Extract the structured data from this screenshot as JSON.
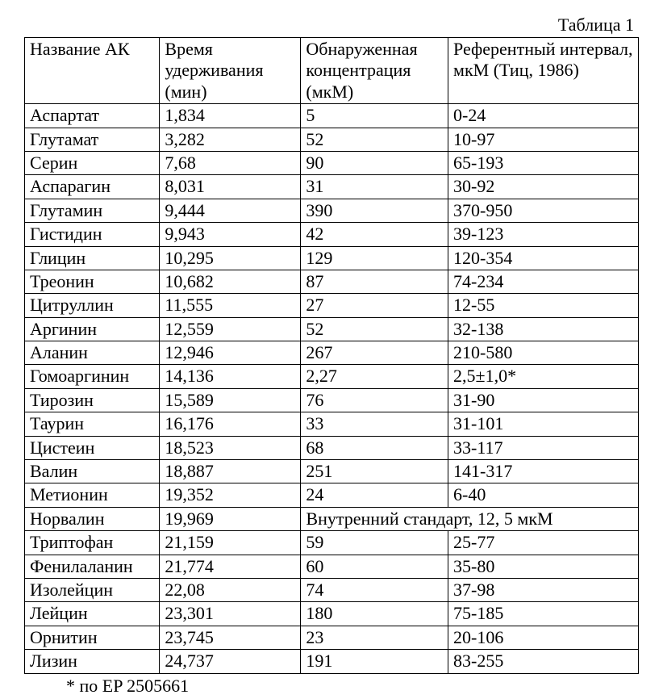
{
  "caption": "Таблица 1",
  "headers": {
    "c1": "Название АК",
    "c2": "Время удерживания (мин)",
    "c3": "Обнаруженная концентрация (мкМ)",
    "c4": "Референтный интервал, мкМ (Тиц, 1986)"
  },
  "rows": [
    {
      "name": "Аспартат",
      "rt": "1,834",
      "conc": "5",
      "ref": "0-24"
    },
    {
      "name": "Глутамат",
      "rt": "3,282",
      "conc": "52",
      "ref": "10-97"
    },
    {
      "name": "Серин",
      "rt": "7,68",
      "conc": "90",
      "ref": "65-193"
    },
    {
      "name": "Аспарагин",
      "rt": "8,031",
      "conc": "31",
      "ref": "30-92"
    },
    {
      "name": "Глутамин",
      "rt": "9,444",
      "conc": "390",
      "ref": "370-950"
    },
    {
      "name": "Гистидин",
      "rt": "9,943",
      "conc": "42",
      "ref": "39-123"
    },
    {
      "name": "Глицин",
      "rt": "10,295",
      "conc": "129",
      "ref": "120-354"
    },
    {
      "name": "Треонин",
      "rt": "10,682",
      "conc": "87",
      "ref": "74-234"
    },
    {
      "name": "Цитруллин",
      "rt": "11,555",
      "conc": "27",
      "ref": "12-55"
    },
    {
      "name": "Аргинин",
      "rt": "12,559",
      "conc": "52",
      "ref": "32-138"
    },
    {
      "name": "Аланин",
      "rt": "12,946",
      "conc": "267",
      "ref": "210-580"
    },
    {
      "name": "Гомоаргинин",
      "rt": "14,136",
      "conc": "2,27",
      "ref": "2,5±1,0*"
    },
    {
      "name": "Тирозин",
      "rt": "15,589",
      "conc": "76",
      "ref": "31-90"
    },
    {
      "name": "Таурин",
      "rt": "16,176",
      "conc": "33",
      "ref": "31-101"
    },
    {
      "name": "Цистеин",
      "rt": "18,523",
      "conc": "68",
      "ref": "33-117"
    },
    {
      "name": "Валин",
      "rt": "18,887",
      "conc": "251",
      "ref": "141-317"
    },
    {
      "name": "Метионин",
      "rt": "19,352",
      "conc": "24",
      "ref": "6-40"
    }
  ],
  "spanRow": {
    "name": "Норвалин",
    "rt": "19,969",
    "merged": "Внутренний стандарт, 12, 5 мкМ"
  },
  "rows2": [
    {
      "name": "Триптофан",
      "rt": "21,159",
      "conc": "59",
      "ref": "25-77"
    },
    {
      "name": "Фенилаланин",
      "rt": "21,774",
      "conc": "60",
      "ref": "35-80"
    },
    {
      "name": "Изолейцин",
      "rt": "22,08",
      "conc": "74",
      "ref": "37-98"
    },
    {
      "name": "Лейцин",
      "rt": "23,301",
      "conc": "180",
      "ref": "75-185"
    },
    {
      "name": "Орнитин",
      "rt": "23,745",
      "conc": "23",
      "ref": "20-106"
    },
    {
      "name": "Лизин",
      "rt": "24,737",
      "conc": "191",
      "ref": "83-255"
    }
  ],
  "footnote": "* по EP 2505661",
  "style": {
    "font_family": "Times New Roman",
    "font_size_pt": 16,
    "border_color": "#000000",
    "background_color": "#ffffff",
    "text_color": "#000000",
    "column_widths_pct": [
      22,
      23,
      24,
      31
    ]
  }
}
